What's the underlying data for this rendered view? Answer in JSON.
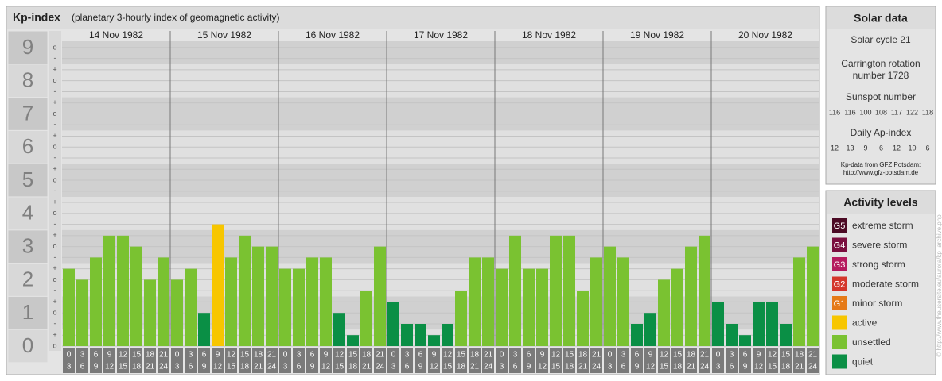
{
  "chart_data": {
    "type": "bar",
    "title": "Kp-index",
    "subtitle": "(planetary 3-hourly index of geomagnetic activity)",
    "categories": [
      "14 Nov 1982",
      "15 Nov 1982",
      "16 Nov 1982",
      "17 Nov 1982",
      "18 Nov 1982",
      "19 Nov 1982",
      "20 Nov 1982"
    ],
    "hours_start": [
      "0",
      "3",
      "6",
      "9",
      "12",
      "15",
      "18",
      "21"
    ],
    "hours_end": [
      "3",
      "6",
      "9",
      "12",
      "15",
      "18",
      "21",
      "24"
    ],
    "values": [
      [
        2.33,
        2,
        2.67,
        3.33,
        3.33,
        3,
        2,
        2.67
      ],
      [
        2,
        2.33,
        1,
        3.67,
        2.67,
        3.33,
        3,
        3
      ],
      [
        2.33,
        2.33,
        2.67,
        2.67,
        1,
        0.33,
        1.67,
        3
      ],
      [
        1.33,
        0.67,
        0.67,
        0.33,
        0.67,
        1.67,
        2.67,
        2.67
      ],
      [
        2.33,
        3.33,
        2.33,
        2.33,
        3.33,
        3.33,
        1.67,
        2.67
      ],
      [
        3,
        2.67,
        0.67,
        1,
        2,
        2.33,
        3,
        3.33
      ],
      [
        1.33,
        0.67,
        0.33,
        1.33,
        1.33,
        0.67,
        2.67,
        3
      ]
    ],
    "colors": [
      [
        "#7ac231",
        "#7ac231",
        "#7ac231",
        "#7ac231",
        "#7ac231",
        "#7ac231",
        "#7ac231",
        "#7ac231"
      ],
      [
        "#7ac231",
        "#7ac231",
        "#0a8f45",
        "#f7c600",
        "#7ac231",
        "#7ac231",
        "#7ac231",
        "#7ac231"
      ],
      [
        "#7ac231",
        "#7ac231",
        "#7ac231",
        "#7ac231",
        "#0a8f45",
        "#0a8f45",
        "#7ac231",
        "#7ac231"
      ],
      [
        "#0a8f45",
        "#0a8f45",
        "#0a8f45",
        "#0a8f45",
        "#0a8f45",
        "#7ac231",
        "#7ac231",
        "#7ac231"
      ],
      [
        "#7ac231",
        "#7ac231",
        "#7ac231",
        "#7ac231",
        "#7ac231",
        "#7ac231",
        "#7ac231",
        "#7ac231"
      ],
      [
        "#7ac231",
        "#7ac231",
        "#0a8f45",
        "#0a8f45",
        "#7ac231",
        "#7ac231",
        "#7ac231",
        "#7ac231"
      ],
      [
        "#0a8f45",
        "#0a8f45",
        "#0a8f45",
        "#0a8f45",
        "#0a8f45",
        "#0a8f45",
        "#7ac231",
        "#7ac231"
      ]
    ],
    "ylim": [
      0,
      9.5
    ],
    "yticks": [
      0,
      1,
      2,
      3,
      4,
      5,
      6,
      7,
      8,
      9
    ],
    "minor_yticks": [
      {
        "value": 9,
        "label": "o"
      },
      {
        "value": 8.67,
        "label": "-"
      },
      {
        "value": 8.33,
        "label": "+"
      },
      {
        "value": 8,
        "label": "o"
      },
      {
        "value": 7.67,
        "label": "-"
      },
      {
        "value": 7.33,
        "label": "+"
      },
      {
        "value": 7,
        "label": "o"
      },
      {
        "value": 6.67,
        "label": "-"
      },
      {
        "value": 6.33,
        "label": "+"
      },
      {
        "value": 6,
        "label": "o"
      },
      {
        "value": 5.67,
        "label": "-"
      },
      {
        "value": 5.33,
        "label": "+"
      },
      {
        "value": 5,
        "label": "o"
      },
      {
        "value": 4.67,
        "label": "-"
      },
      {
        "value": 4.33,
        "label": "+"
      },
      {
        "value": 4,
        "label": "o"
      },
      {
        "value": 3.67,
        "label": "-"
      },
      {
        "value": 3.33,
        "label": "+"
      },
      {
        "value": 3,
        "label": "o"
      },
      {
        "value": 2.67,
        "label": "-"
      },
      {
        "value": 2.33,
        "label": "+"
      },
      {
        "value": 2,
        "label": "o"
      },
      {
        "value": 1.67,
        "label": "-"
      },
      {
        "value": 1.33,
        "label": "+"
      },
      {
        "value": 1,
        "label": "o"
      },
      {
        "value": 0.67,
        "label": "-"
      },
      {
        "value": 0.33,
        "label": "+"
      },
      {
        "value": 0,
        "label": "o"
      }
    ],
    "grid": true
  },
  "solar_data": {
    "title": "Solar data",
    "cycle": "Solar cycle 21",
    "carrington": [
      "Carrington rotation",
      "number 1728"
    ],
    "sunspot_label": "Sunspot number",
    "sunspot_values": [
      116,
      116,
      100,
      108,
      117,
      122,
      118
    ],
    "ap_label": "Daily Ap-index",
    "ap_values": [
      12,
      13,
      9,
      6,
      12,
      10,
      6
    ],
    "source": [
      "Kp-data from GFZ Potsdam:",
      "http://www.gfz-potsdam.de"
    ]
  },
  "activity_levels": {
    "title": "Activity levels",
    "levels": [
      {
        "code": "G5",
        "name": "extreme storm",
        "color": "#4b0a24"
      },
      {
        "code": "G4",
        "name": "severe storm",
        "color": "#7a0e3e"
      },
      {
        "code": "G3",
        "name": "strong storm",
        "color": "#b51a5e"
      },
      {
        "code": "G2",
        "name": "moderate storm",
        "color": "#d4362b"
      },
      {
        "code": "G1",
        "name": "minor storm",
        "color": "#e57a17"
      },
      {
        "name": "active",
        "color": "#f7c600"
      },
      {
        "name": "unsettled",
        "color": "#7ac231"
      },
      {
        "name": "quiet",
        "color": "#0a8f45"
      }
    ]
  },
  "watermark": "© http://www.theusersite.eu/aurora/kp_archive.php"
}
